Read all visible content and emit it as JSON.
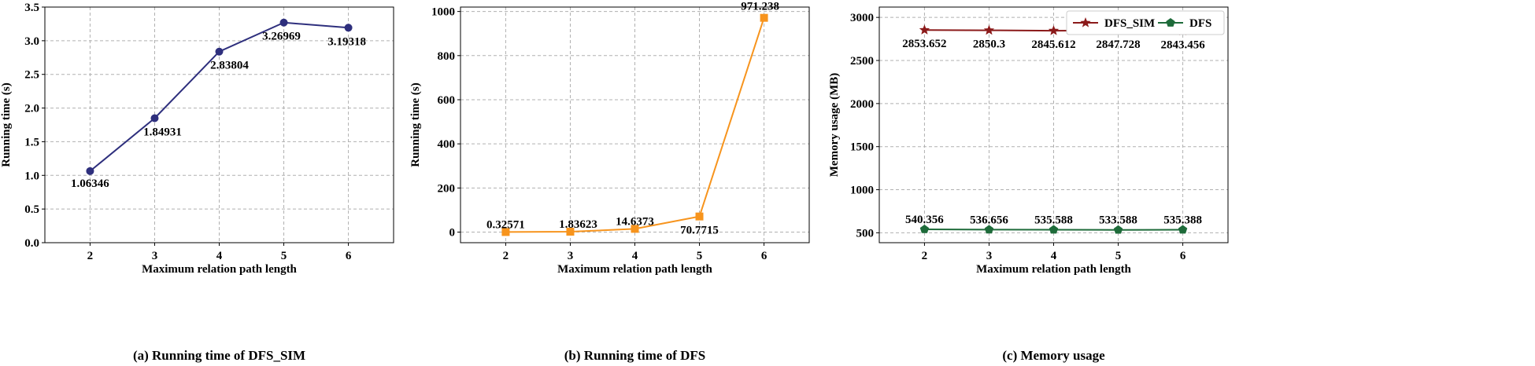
{
  "chart_data": [
    {
      "type": "line",
      "caption": "(a) Running time of DFS_SIM",
      "xlabel": "Maximum relation path length",
      "ylabel": "Running time (s)",
      "x": [
        2,
        3,
        4,
        5,
        6
      ],
      "xlim": [
        1.3,
        6.7
      ],
      "ylim": [
        0,
        3.5
      ],
      "yticks": [
        0.0,
        0.5,
        1.0,
        1.5,
        2.0,
        2.5,
        3.0,
        3.5
      ],
      "ytick_labels": [
        "0.0",
        "0.5",
        "1.0",
        "1.5",
        "2.0",
        "2.5",
        "3.0",
        "3.5"
      ],
      "grid": true,
      "series": [
        {
          "values": [
            1.06346,
            1.84931,
            2.83804,
            3.26969,
            3.19318
          ],
          "labels": [
            "1.06346",
            "1.84931",
            "2.83804",
            "3.26969",
            "3.19318"
          ],
          "color": "#2e2f7d",
          "marker": "circle"
        }
      ]
    },
    {
      "type": "line",
      "caption": "(b) Running time of DFS",
      "xlabel": "Maximum relation path length",
      "ylabel": "Running time (s)",
      "x": [
        2,
        3,
        4,
        5,
        6
      ],
      "xlim": [
        1.3,
        6.7
      ],
      "ylim": [
        -48,
        1020
      ],
      "yticks": [
        0,
        200,
        400,
        600,
        800,
        1000
      ],
      "ytick_labels": [
        "0",
        "200",
        "400",
        "600",
        "800",
        "1000"
      ],
      "grid": true,
      "series": [
        {
          "values": [
            0.32571,
            1.83623,
            14.6373,
            70.7715,
            971.238
          ],
          "labels": [
            "0.32571",
            "1.83623",
            "14.6373",
            "70.7715",
            "971.238"
          ],
          "color": "#f7941d",
          "marker": "square"
        }
      ]
    },
    {
      "type": "line",
      "caption": "(c) Memory usage",
      "xlabel": "Maximum relation path length",
      "ylabel": "Memory usage (MB)",
      "x": [
        2,
        3,
        4,
        5,
        6
      ],
      "xlim": [
        1.3,
        6.7
      ],
      "ylim": [
        385,
        3120
      ],
      "yticks": [
        500,
        1000,
        1500,
        2000,
        2500,
        3000
      ],
      "ytick_labels": [
        "500",
        "1000",
        "1500",
        "2000",
        "2500",
        "3000"
      ],
      "grid": true,
      "legend": "top-right",
      "series": [
        {
          "name": "DFS_SIM",
          "values": [
            2853.652,
            2850.3,
            2845.612,
            2847.728,
            2843.456
          ],
          "labels": [
            "2853.652",
            "2850.3",
            "2845.612",
            "2847.728",
            "2843.456"
          ],
          "color": "#8b1a1a",
          "marker": "star"
        },
        {
          "name": "DFS",
          "values": [
            540.356,
            536.656,
            535.588,
            533.588,
            535.388
          ],
          "labels": [
            "540.356",
            "536.656",
            "535.588",
            "533.588",
            "535.388"
          ],
          "color": "#1e6b3a",
          "marker": "pentagon"
        }
      ]
    }
  ]
}
